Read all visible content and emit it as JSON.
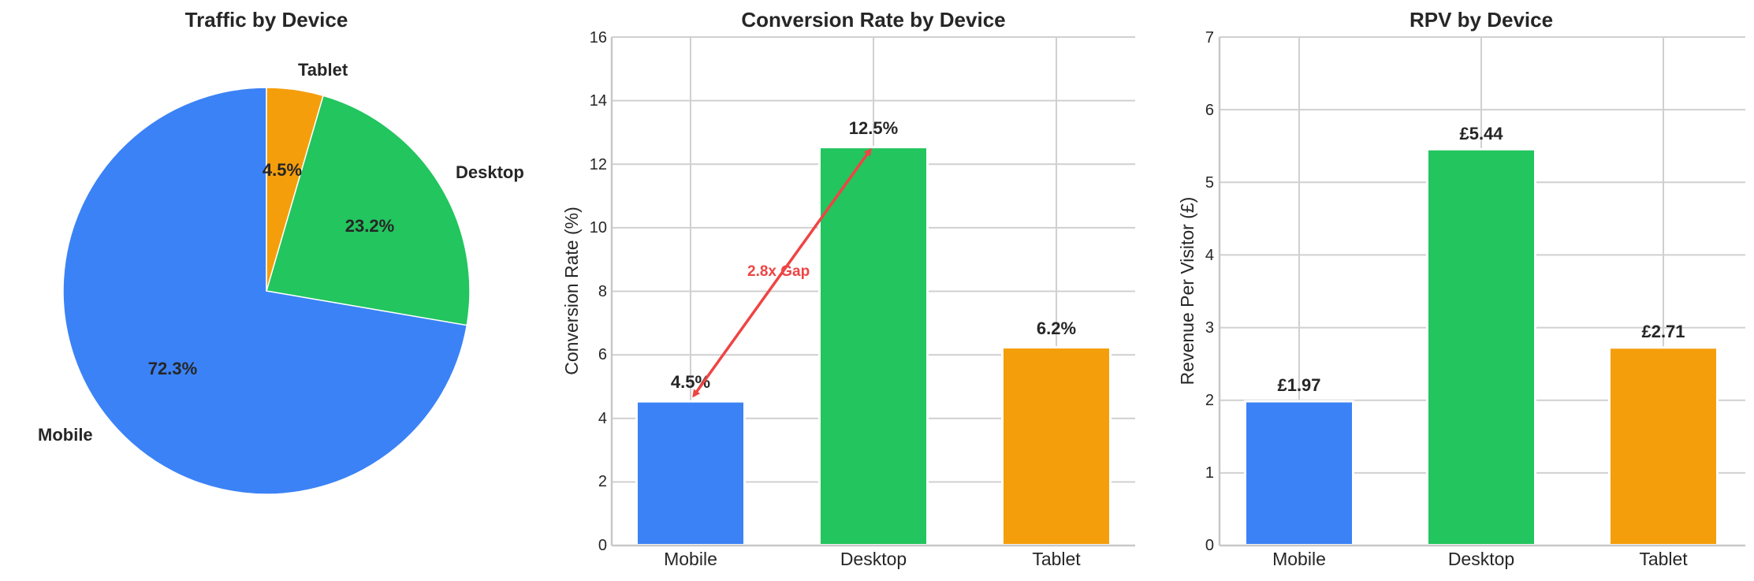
{
  "colors": {
    "mobile": "#3b82f6",
    "desktop": "#22c55e",
    "tablet": "#f59e0b",
    "annotation": "#ef4444",
    "grid": "#d0d0d0",
    "text": "#262626"
  },
  "chart_data": [
    {
      "type": "pie",
      "title": "Traffic by Device",
      "categories": [
        "Mobile",
        "Desktop",
        "Tablet"
      ],
      "values": [
        72.3,
        23.2,
        4.5
      ],
      "labels": [
        "72.3%",
        "23.2%",
        "4.5%"
      ],
      "start_angle": 90,
      "direction": "counterclockwise"
    },
    {
      "type": "bar",
      "title": "Conversion Rate by Device",
      "categories": [
        "Mobile",
        "Desktop",
        "Tablet"
      ],
      "values": [
        4.5,
        12.5,
        6.2
      ],
      "value_labels": [
        "4.5%",
        "12.5%",
        "6.2%"
      ],
      "xlabel": "",
      "ylabel": "Conversion Rate (%)",
      "ylim": [
        0,
        16
      ],
      "yticks": [
        "0",
        "2",
        "4",
        "6",
        "8",
        "10",
        "12",
        "14",
        "16"
      ],
      "grid": true,
      "annotation": {
        "text": "2.8x Gap",
        "from": "Mobile",
        "to": "Desktop",
        "style": "double-arrow"
      }
    },
    {
      "type": "bar",
      "title": "RPV by Device",
      "categories": [
        "Mobile",
        "Desktop",
        "Tablet"
      ],
      "values": [
        1.97,
        5.44,
        2.71
      ],
      "value_labels": [
        "£1.97",
        "£5.44",
        "£2.71"
      ],
      "xlabel": "",
      "ylabel": "Revenue Per Visitor (£)",
      "ylim": [
        0,
        7
      ],
      "yticks": [
        "0",
        "1",
        "2",
        "3",
        "4",
        "5",
        "6",
        "7"
      ],
      "grid": true
    }
  ],
  "pie": {
    "title": "Traffic by Device",
    "slices": [
      {
        "name": "Mobile",
        "pct": "72.3%"
      },
      {
        "name": "Desktop",
        "pct": "23.2%"
      },
      {
        "name": "Tablet",
        "pct": "4.5%"
      }
    ]
  },
  "conv": {
    "title": "Conversion Rate by Device",
    "ylabel": "Conversion Rate (%)",
    "yticks": [
      "0",
      "2",
      "4",
      "6",
      "8",
      "10",
      "12",
      "14",
      "16"
    ],
    "categories": [
      "Mobile",
      "Desktop",
      "Tablet"
    ],
    "value_labels": [
      "4.5%",
      "12.5%",
      "6.2%"
    ],
    "annotation": "2.8x Gap"
  },
  "rpv": {
    "title": "RPV by Device",
    "ylabel": "Revenue Per Visitor (£)",
    "yticks": [
      "0",
      "1",
      "2",
      "3",
      "4",
      "5",
      "6",
      "7"
    ],
    "categories": [
      "Mobile",
      "Desktop",
      "Tablet"
    ],
    "value_labels": [
      "£1.97",
      "£5.44",
      "£2.71"
    ]
  }
}
